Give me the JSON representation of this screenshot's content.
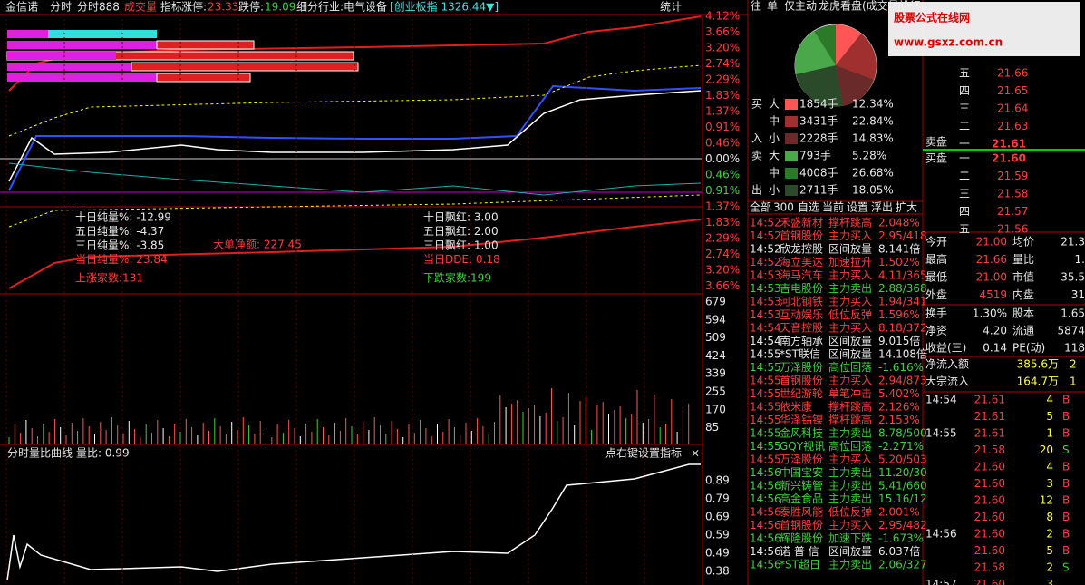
{
  "header": {
    "stock": "金信诺",
    "tabs": [
      "分时",
      "分时888",
      "成交量",
      "指标"
    ],
    "limit_up_label": "涨停:",
    "limit_up": "23.33",
    "limit_down_label": "跌停:",
    "limit_down": "19.09",
    "industry": "细分行业:电气设备",
    "index": "[创业板指 1326.44▼]",
    "stats": "统计"
  },
  "main_chart": {
    "price_axis": [
      "4.12%",
      "3.66%",
      "3.20%",
      "2.74%",
      "2.29%",
      "1.83%",
      "1.37%",
      "0.91%",
      "0.46%",
      "0.00%",
      "0.46%",
      "0.91%"
    ],
    "indicator_axis": [
      "1.37%",
      "1.83%",
      "2.29%",
      "2.74%",
      "3.20%",
      "3.66%"
    ],
    "volume_axis": [
      "679",
      "594",
      "509",
      "424",
      "339",
      "255",
      "170",
      "85"
    ],
    "indicators_left": [
      "十日纯量%: -12.99",
      "五日纯量%: -4.37",
      "三日纯量%: -3.85",
      "当日纯量%: 23.84"
    ],
    "rise_count": "上涨家数:131",
    "big_order": "大单净额: 227.45",
    "indicators_right": [
      "十日飘红: 3.00",
      "五日飘红: 2.00",
      "三日飘红: 1.00",
      "当日DDE: 0.18"
    ],
    "fall_count": "下跌家数:199",
    "lower_title": "分时量比曲线",
    "lower_ratio": "量比: 0.99",
    "lower_hint": "点右键设置指标",
    "lower_close": "×",
    "lower_axis": [
      "0.89",
      "0.79",
      "0.69",
      "0.59",
      "0.49",
      "0.38"
    ]
  },
  "flow_panel": {
    "tabs": [
      "往",
      "单",
      "仅主动",
      "龙虎看盘(成交量排行"
    ],
    "watermark": [
      "股票公式在线网",
      "www.gsxz.com.cn"
    ],
    "buy_label": [
      "买",
      "入"
    ],
    "sell_label": [
      "卖",
      "出"
    ],
    "buy_rows": [
      [
        "大",
        "1854手",
        "12.34%"
      ],
      [
        "中",
        "3431手",
        "22.84%"
      ],
      [
        "小",
        "2228手",
        "14.83%"
      ]
    ],
    "sell_rows": [
      [
        "大",
        "793手",
        "5.28%"
      ],
      [
        "中",
        "4008手",
        "26.68%"
      ],
      [
        "小",
        "2711手",
        "18.05%"
      ]
    ]
  },
  "news": {
    "tabs": [
      "全部",
      "300",
      "自选",
      "当前",
      "设置",
      "浮出",
      "扩大"
    ],
    "rows": [
      {
        "time": "14:52",
        "name": "禾盛新材",
        "event": "撑杆跳高",
        "value": "2.048%",
        "color": "#ff3c3c"
      },
      {
        "time": "14:52",
        "name": "首钢股份",
        "event": "主力买入",
        "value": "2.95/418",
        "color": "#ff3c3c"
      },
      {
        "time": "14:52",
        "name": "欣龙控股",
        "event": "区间放量",
        "value": "8.141倍",
        "color": "#e8e8e8"
      },
      {
        "time": "14:52",
        "name": "海立美达",
        "event": "加速拉升",
        "value": "1.502%",
        "color": "#ff3c3c"
      },
      {
        "time": "14:53",
        "name": "海马汽车",
        "event": "主力买入",
        "value": "4.11/365",
        "color": "#ff3c3c"
      },
      {
        "time": "14:53",
        "name": "吉电股份",
        "event": "主力卖出",
        "value": "2.88/368",
        "color": "#3cd23c"
      },
      {
        "time": "14:53",
        "name": "河北钢铁",
        "event": "主力买入",
        "value": "1.94/341",
        "color": "#ff3c3c"
      },
      {
        "time": "14:53",
        "name": "互动娱乐",
        "event": "低位反弹",
        "value": "1.596%",
        "color": "#ff3c3c"
      },
      {
        "time": "14:54",
        "name": "天音控股",
        "event": "主力买入",
        "value": "8.18/372",
        "color": "#ff3c3c"
      },
      {
        "time": "14:54",
        "name": "南方轴承",
        "event": "区间放量",
        "value": "9.015倍",
        "color": "#e8e8e8"
      },
      {
        "time": "14:55",
        "name": "*ST联信",
        "event": "区间放量",
        "value": "14.108倍",
        "color": "#e8e8e8"
      },
      {
        "time": "14:55",
        "name": "万泽股份",
        "event": "高位回落",
        "value": "-1.616%",
        "color": "#3cd23c"
      },
      {
        "time": "14:55",
        "name": "首钢股份",
        "event": "主力买入",
        "value": "2.94/873",
        "color": "#ff3c3c"
      },
      {
        "time": "14:55",
        "name": "世纪游轮",
        "event": "单笔冲击",
        "value": "5.402%",
        "color": "#ff3c3c"
      },
      {
        "time": "14:55",
        "name": "依米康",
        "event": "撑杆跳高",
        "value": "2.126%",
        "color": "#ff3c3c"
      },
      {
        "time": "14:55",
        "name": "华泽钴镍",
        "event": "撑杆跳高",
        "value": "2.153%",
        "color": "#ff3c3c"
      },
      {
        "time": "14:55",
        "name": "金风科技",
        "event": "主力卖出",
        "value": "8.78/500",
        "color": "#3cd23c"
      },
      {
        "time": "14:55",
        "name": "GQY视讯",
        "event": "高位回落",
        "value": "-2.271%",
        "color": "#3cd23c"
      },
      {
        "time": "14:55",
        "name": "万泽股份",
        "event": "主力买入",
        "value": "5.20/503",
        "color": "#ff3c3c"
      },
      {
        "time": "14:56",
        "name": "中国宝安",
        "event": "主力卖出",
        "value": "11.20/30",
        "color": "#3cd23c"
      },
      {
        "time": "14:56",
        "name": "新兴铸管",
        "event": "主力卖出",
        "value": "5.41/660",
        "color": "#3cd23c"
      },
      {
        "time": "14:56",
        "name": "高金食品",
        "event": "主力卖出",
        "value": "15.16/12",
        "color": "#3cd23c"
      },
      {
        "time": "14:56",
        "name": "泰胜风能",
        "event": "低位反弹",
        "value": "2.001%",
        "color": "#ff3c3c"
      },
      {
        "time": "14:56",
        "name": "首钢股份",
        "event": "主力买入",
        "value": "2.95/482",
        "color": "#ff3c3c"
      },
      {
        "time": "14:56",
        "name": "辉隆股份",
        "event": "加速下跌",
        "value": "-1.673%",
        "color": "#3cd23c"
      },
      {
        "time": "14:56",
        "name": "诺 普 信",
        "event": "区间放量",
        "value": "6.037倍",
        "color": "#e8e8e8"
      },
      {
        "time": "14:56",
        "name": "*ST超日",
        "event": "主力卖出",
        "value": "2.06/327",
        "color": "#3cd23c"
      }
    ]
  },
  "quote": {
    "asks": [
      [
        "五",
        "21.66"
      ],
      [
        "四",
        "21.65"
      ],
      [
        "三",
        "21.64"
      ],
      [
        "二",
        "21.63"
      ],
      [
        "一",
        "21.61"
      ]
    ],
    "sell_label": "卖盘",
    "buy_label": "买盘",
    "bids": [
      [
        "一",
        "21.60"
      ],
      [
        "二",
        "21.59"
      ],
      [
        "三",
        "21.58"
      ],
      [
        "四",
        "21.57"
      ],
      [
        "五",
        "21.56"
      ]
    ],
    "stats": [
      [
        "今开",
        "21.00",
        "均价",
        "21.3"
      ],
      [
        "最高",
        "21.66",
        "量比",
        "1."
      ],
      [
        "最低",
        "21.00",
        "市值",
        "35.5"
      ],
      [
        "外盘",
        "4519",
        "内盘",
        "31"
      ],
      [
        "换手",
        "1.30%",
        "股本",
        "1.65"
      ],
      [
        "净资",
        "4.20",
        "流通",
        "5874"
      ],
      [
        "收益(三)",
        "0.14",
        "PE(动)",
        "118"
      ]
    ],
    "flow": [
      [
        "净流入额",
        "385.6万",
        "2"
      ],
      [
        "大宗流入",
        "164.7万",
        "1"
      ]
    ],
    "ticks": [
      [
        "14:54",
        "21.61",
        "4",
        "B"
      ],
      [
        "",
        "21.61",
        "5",
        "B"
      ],
      [
        "14:55",
        "21.61",
        "1",
        "B"
      ],
      [
        "",
        "21.58",
        "20",
        "S"
      ],
      [
        "",
        "21.60",
        "4",
        "B"
      ],
      [
        "",
        "21.60",
        "3",
        "B"
      ],
      [
        "",
        "21.60",
        "12",
        "B"
      ],
      [
        "",
        "21.60",
        "8",
        "B"
      ],
      [
        "14:56",
        "21.60",
        "2",
        "B"
      ],
      [
        "",
        "21.60",
        "5",
        "B"
      ],
      [
        "",
        "21.58",
        "2",
        "S"
      ],
      [
        "14:57",
        "21.60",
        "3",
        ""
      ]
    ]
  }
}
